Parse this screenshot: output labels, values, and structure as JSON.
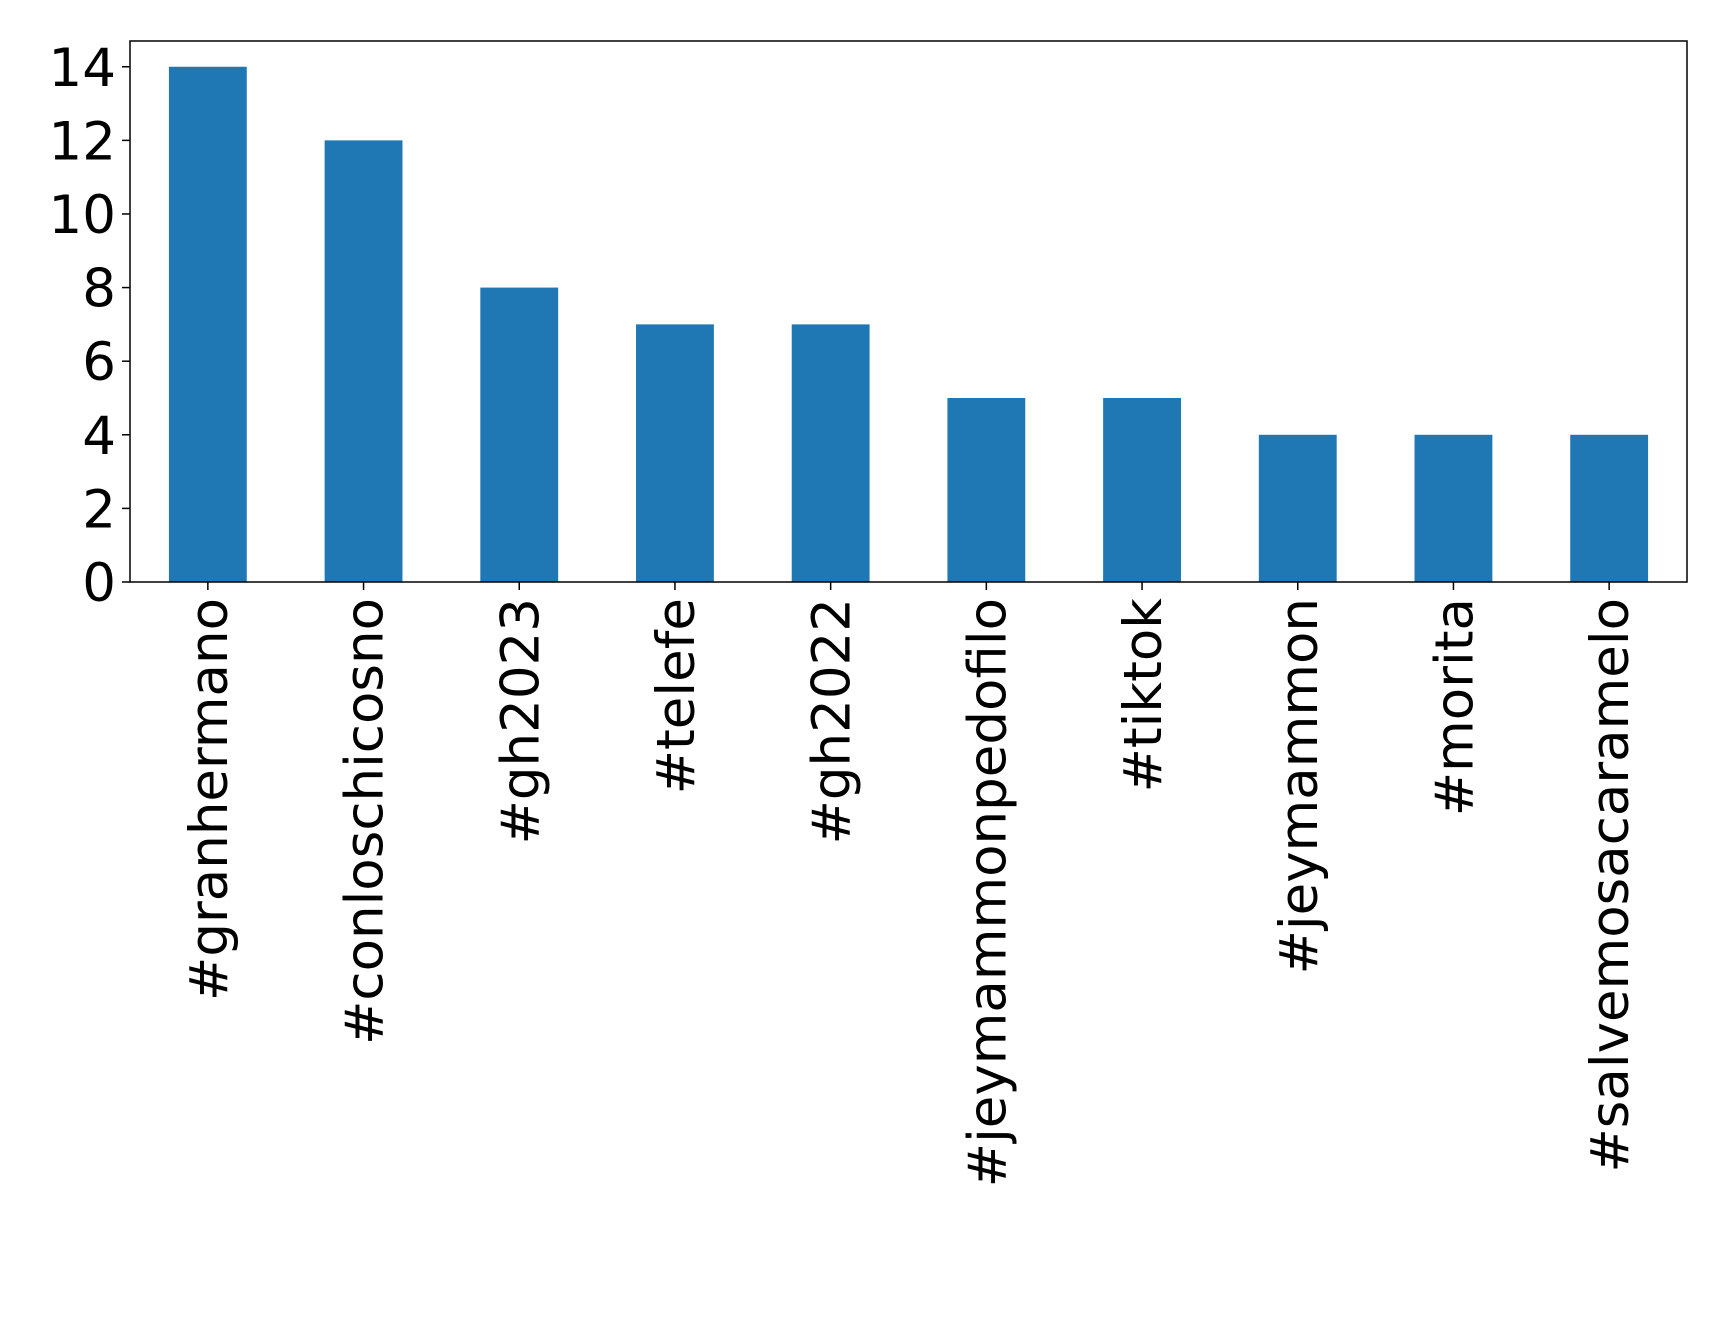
{
  "chart_data": {
    "type": "bar",
    "categories": [
      "#granhermano",
      "#conloschicosno",
      "#gh2023",
      "#telefe",
      "#gh2022",
      "#jeymammonpedofilo",
      "#tiktok",
      "#jeymammon",
      "#morita",
      "#salvemosacaramelo"
    ],
    "values": [
      14,
      12,
      8,
      7,
      7,
      5,
      5,
      4,
      4,
      4
    ],
    "color": "#1f77b4",
    "ylim": [
      0,
      14.7
    ],
    "yticks": [
      0,
      2,
      4,
      6,
      8,
      10,
      12,
      14
    ],
    "grid": false
  }
}
